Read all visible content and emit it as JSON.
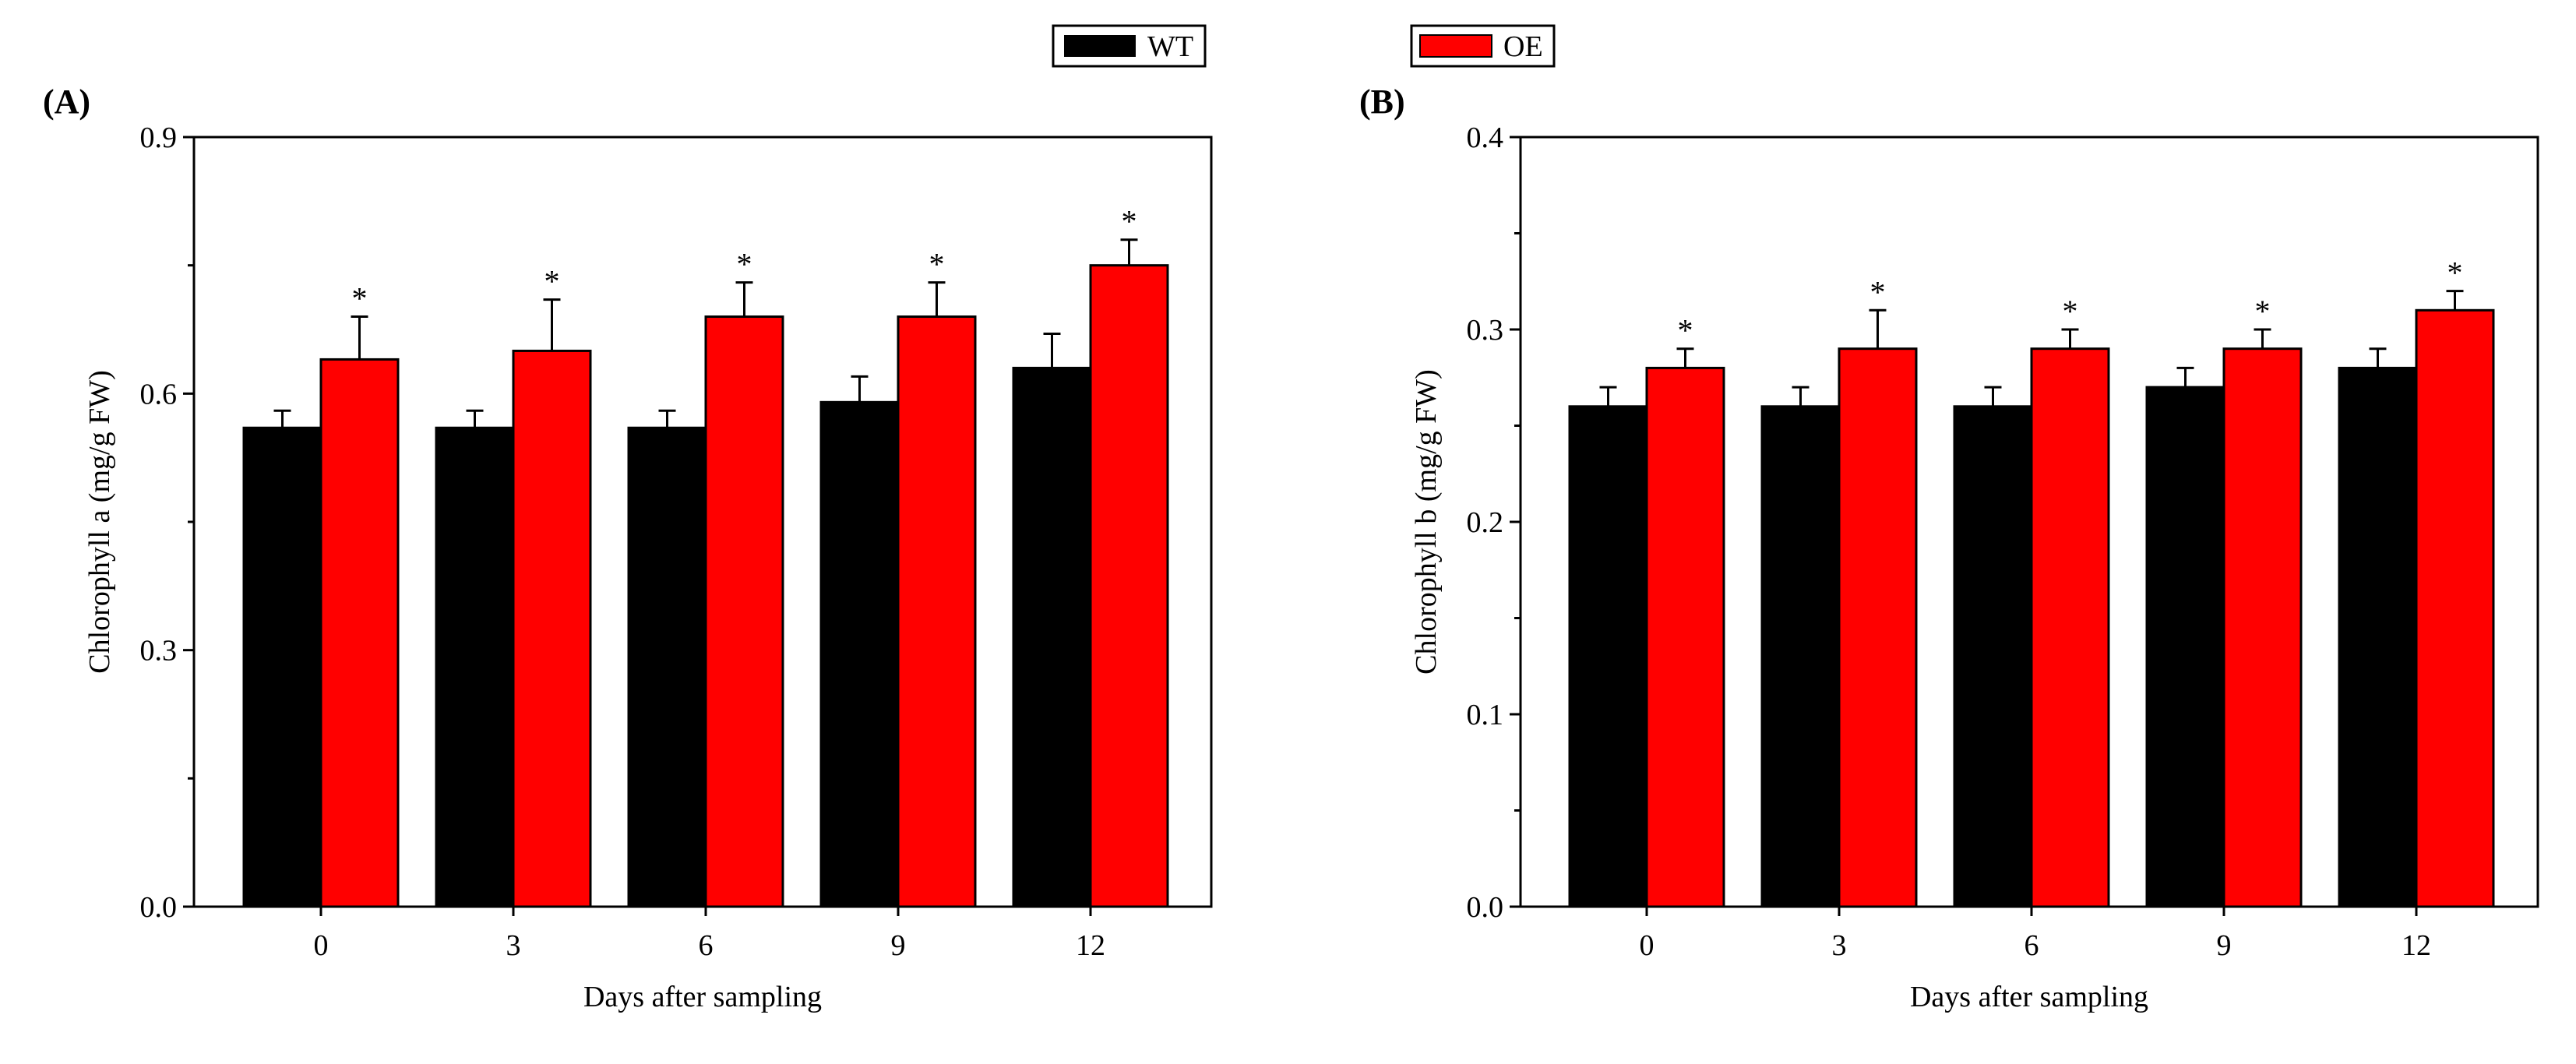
{
  "legend": [
    {
      "label": "WT",
      "color": "#000000"
    },
    {
      "label": "OE",
      "color": "#ff0000"
    }
  ],
  "chart_data": [
    {
      "type": "bar",
      "panel_label": "(A)",
      "title": "",
      "xlabel": "Days after sampling",
      "ylabel": "Chlorophyll a (mg/g FW)",
      "categories": [
        "0",
        "3",
        "6",
        "9",
        "12"
      ],
      "ylim": [
        0,
        0.9
      ],
      "yticks": [
        "0.0",
        "0.3",
        "0.6",
        "0.9"
      ],
      "series": [
        {
          "name": "WT",
          "color": "#000000",
          "values": [
            0.56,
            0.56,
            0.56,
            0.59,
            0.63
          ],
          "errors": [
            0.02,
            0.02,
            0.02,
            0.03,
            0.04
          ]
        },
        {
          "name": "OE",
          "color": "#ff0000",
          "values": [
            0.64,
            0.65,
            0.69,
            0.69,
            0.75
          ],
          "errors": [
            0.05,
            0.06,
            0.04,
            0.04,
            0.03
          ],
          "annotations": [
            "*",
            "*",
            "*",
            "*",
            "*"
          ]
        }
      ],
      "grid": false,
      "legend_position": "top-center"
    },
    {
      "type": "bar",
      "panel_label": "(B)",
      "title": "",
      "xlabel": "Days after sampling",
      "ylabel": "Chlorophyll b (mg/g FW)",
      "categories": [
        "0",
        "3",
        "6",
        "9",
        "12"
      ],
      "ylim": [
        0,
        0.4
      ],
      "yticks": [
        "0.0",
        "0.1",
        "0.2",
        "0.3",
        "0.4"
      ],
      "series": [
        {
          "name": "WT",
          "color": "#000000",
          "values": [
            0.26,
            0.26,
            0.26,
            0.27,
            0.28
          ],
          "errors": [
            0.01,
            0.01,
            0.01,
            0.01,
            0.01
          ]
        },
        {
          "name": "OE",
          "color": "#ff0000",
          "values": [
            0.28,
            0.29,
            0.29,
            0.29,
            0.31
          ],
          "errors": [
            0.01,
            0.02,
            0.01,
            0.01,
            0.01
          ],
          "annotations": [
            "*",
            "*",
            "*",
            "*",
            "*"
          ]
        }
      ],
      "grid": false,
      "legend_position": "top-center"
    }
  ]
}
